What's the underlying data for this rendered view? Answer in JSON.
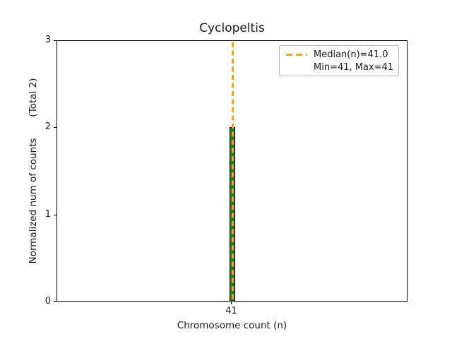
{
  "chart_data": {
    "type": "bar",
    "title": "Cyclopeltis",
    "xlabel": "Chromosome count (n)",
    "ylabel": "Normalized num of counts",
    "ylabel_annotation": "(Total 2)",
    "categories": [
      41
    ],
    "values": [
      2
    ],
    "total_counts": 2,
    "ylim": [
      0,
      3
    ],
    "yticks": [
      0,
      1,
      2,
      3
    ],
    "ytick_labels": [
      "0",
      "1",
      "2",
      "3"
    ],
    "xtick_labels": [
      "41"
    ],
    "median": 41.0,
    "min": 41,
    "max": 41,
    "grid": false,
    "legend": {
      "position": "upper-right",
      "entries": [
        {
          "label": "Median(n)=41.0",
          "marker": "dashed-line"
        },
        {
          "label": "Min=41, Max=41",
          "marker": "none"
        }
      ]
    },
    "colors": {
      "bar_fill": "#178217",
      "bar_edge": "#000000",
      "median_line": "#EBA53C",
      "axis": "#000000",
      "text": "#1a1a1a"
    }
  }
}
